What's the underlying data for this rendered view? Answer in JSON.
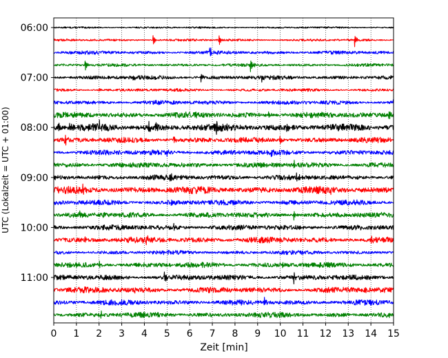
{
  "chart_data": {
    "type": "line",
    "title": "",
    "xlabel": "Zeit  [min]",
    "ylabel": "UTC (Lokalzeit = UTC + 01:00)",
    "xlim": [
      0,
      15
    ],
    "x_ticks": [
      "0",
      "1",
      "2",
      "3",
      "4",
      "5",
      "6",
      "7",
      "8",
      "9",
      "10",
      "11",
      "12",
      "13",
      "14",
      "15"
    ],
    "y_tick_labels": [
      "06:00",
      "07:00",
      "08:00",
      "09:00",
      "10:00",
      "11:00"
    ],
    "grid": "vertical dotted at each minute",
    "trace_colors": [
      "#000000",
      "#ff0000",
      "#0000ff",
      "#008000"
    ],
    "start_time": "06:00",
    "trace_minutes": 15,
    "series": [
      {
        "start": "06:00",
        "color": "#000000",
        "noise": 0.15,
        "events": []
      },
      {
        "start": "06:15",
        "color": "#ff0000",
        "noise": 0.2,
        "events": [
          [
            4.4,
            1.0
          ],
          [
            7.3,
            1.1
          ],
          [
            13.3,
            1.2
          ]
        ]
      },
      {
        "start": "06:30",
        "color": "#0000ff",
        "noise": 0.3,
        "events": [
          [
            6.9,
            1.2
          ]
        ]
      },
      {
        "start": "06:45",
        "color": "#008000",
        "noise": 0.25,
        "events": [
          [
            1.4,
            1.1
          ],
          [
            8.7,
            1.3
          ]
        ]
      },
      {
        "start": "07:00",
        "color": "#000000",
        "noise": 0.35,
        "events": [
          [
            3.5,
            0.6
          ],
          [
            6.5,
            0.7
          ],
          [
            9.2,
            0.6
          ]
        ]
      },
      {
        "start": "07:15",
        "color": "#ff0000",
        "noise": 0.25,
        "events": [
          [
            2.0,
            0.5
          ]
        ]
      },
      {
        "start": "07:30",
        "color": "#0000ff",
        "noise": 0.35,
        "events": [
          [
            4.5,
            0.6
          ],
          [
            15.0,
            1.3
          ]
        ]
      },
      {
        "start": "07:45",
        "color": "#008000",
        "noise": 0.5,
        "events": [
          [
            9.5,
            0.9
          ],
          [
            14.8,
            1.1
          ]
        ]
      },
      {
        "start": "08:00",
        "color": "#000000",
        "noise": 0.6,
        "events": [
          [
            0.2,
            1.2
          ],
          [
            0.7,
            1.0
          ],
          [
            2.0,
            1.5
          ],
          [
            2.3,
            1.3
          ],
          [
            4.2,
            1.2
          ],
          [
            4.5,
            1.1
          ],
          [
            7.2,
            0.9
          ],
          [
            10.3,
            0.8
          ]
        ]
      },
      {
        "start": "08:15",
        "color": "#ff0000",
        "noise": 0.45,
        "events": [
          [
            0.5,
            1.2
          ],
          [
            5.3,
            1.0
          ],
          [
            10.0,
            1.0
          ]
        ]
      },
      {
        "start": "08:30",
        "color": "#0000ff",
        "noise": 0.45,
        "events": [
          [
            5.0,
            0.8
          ],
          [
            9.6,
            1.0
          ]
        ]
      },
      {
        "start": "08:45",
        "color": "#008000",
        "noise": 0.45,
        "events": [
          [
            10.6,
            0.9
          ]
        ]
      },
      {
        "start": "09:00",
        "color": "#000000",
        "noise": 0.45,
        "events": [
          [
            5.1,
            1.0
          ],
          [
            10.7,
            0.8
          ]
        ]
      },
      {
        "start": "09:15",
        "color": "#ff0000",
        "noise": 0.6,
        "events": [
          [
            1.3,
            0.9
          ],
          [
            12.2,
            0.8
          ]
        ]
      },
      {
        "start": "09:30",
        "color": "#0000ff",
        "noise": 0.45,
        "events": [
          [
            5.2,
            0.9
          ]
        ]
      },
      {
        "start": "09:45",
        "color": "#008000",
        "noise": 0.45,
        "events": [
          [
            1.1,
            0.7
          ],
          [
            2.2,
            0.8
          ],
          [
            10.6,
            1.0
          ]
        ]
      },
      {
        "start": "10:00",
        "color": "#000000",
        "noise": 0.45,
        "events": [
          [
            5.3,
            1.0
          ]
        ]
      },
      {
        "start": "10:15",
        "color": "#ff0000",
        "noise": 0.5,
        "events": [
          [
            1.4,
            0.8
          ],
          [
            4.1,
            0.9
          ],
          [
            14.0,
            0.7
          ]
        ]
      },
      {
        "start": "10:30",
        "color": "#0000ff",
        "noise": 0.35,
        "events": []
      },
      {
        "start": "10:45",
        "color": "#008000",
        "noise": 0.45,
        "events": [
          [
            2.0,
            0.7
          ],
          [
            10.1,
            1.0
          ]
        ]
      },
      {
        "start": "11:00",
        "color": "#000000",
        "noise": 0.45,
        "events": [
          [
            4.9,
            0.8
          ],
          [
            10.6,
            1.0
          ]
        ]
      },
      {
        "start": "11:15",
        "color": "#ff0000",
        "noise": 0.5,
        "events": [
          [
            3.6,
            0.8
          ],
          [
            13.7,
            0.9
          ]
        ]
      },
      {
        "start": "11:30",
        "color": "#0000ff",
        "noise": 0.45,
        "events": [
          [
            9.3,
            0.8
          ]
        ]
      },
      {
        "start": "11:45",
        "color": "#008000",
        "noise": 0.45,
        "events": [
          [
            2.1,
            0.9
          ]
        ]
      }
    ]
  }
}
